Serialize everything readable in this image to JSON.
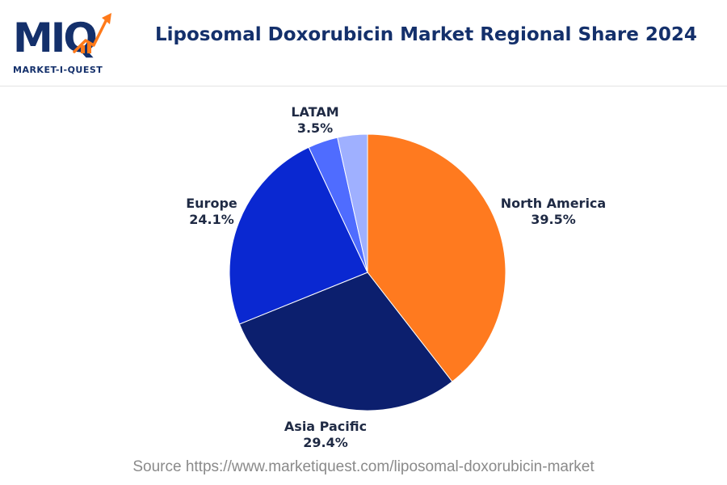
{
  "brand": {
    "logo_text": "MIQ",
    "tagline": "MARKET-I-QUEST",
    "colors": {
      "navy": "#14306b",
      "orange": "#ff7a1a"
    }
  },
  "header": {
    "title": "Liposomal Doxorubicin Market Regional Share 2024"
  },
  "chart_data": {
    "type": "pie",
    "title": "Liposomal Doxorubicin Market Regional Share 2024",
    "unit": "%",
    "slices": [
      {
        "label": "North America",
        "value": 39.5,
        "display": "39.5%",
        "color": "#ff7a1f"
      },
      {
        "label": "Asia Pacific",
        "value": 29.4,
        "display": "29.4%",
        "color": "#0c1f6e"
      },
      {
        "label": "Europe",
        "value": 24.1,
        "display": "24.1%",
        "color": "#0a28d1"
      },
      {
        "label": "",
        "value": 3.5,
        "display": "",
        "color": "#4f6cff"
      },
      {
        "label": "LATAM",
        "value": 3.5,
        "display": "3.5%",
        "color": "#9fb0ff"
      }
    ]
  },
  "footer": {
    "source": "Source https://www.marketiquest.com/liposomal-doxorubicin-market"
  }
}
